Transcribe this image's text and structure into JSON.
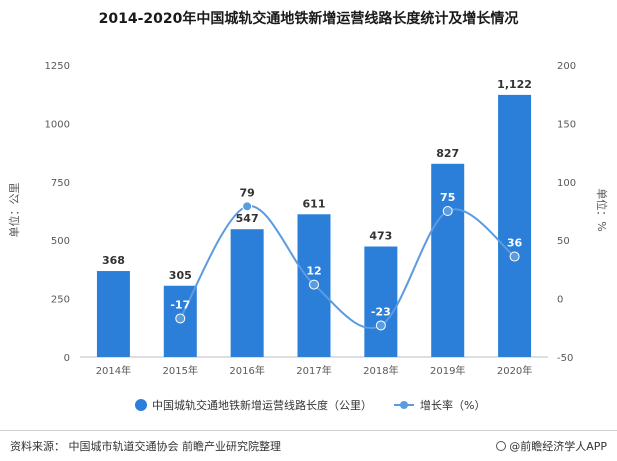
{
  "chart_data": {
    "type": "bar+line",
    "title": "2014-2020年中国城轨交通地铁新增运营线路长度统计及增长情况",
    "categories": [
      "2014年",
      "2015年",
      "2016年",
      "2017年",
      "2018年",
      "2019年",
      "2020年"
    ],
    "series": [
      {
        "name": "中国城轨交通地铁新增运营线路长度（公里）",
        "type": "bar",
        "axis": "left",
        "color": "#2b7fd8",
        "values": [
          368,
          305,
          547,
          611,
          473,
          827,
          1122
        ],
        "labels": [
          "368",
          "305",
          "547",
          "611",
          "473",
          "827",
          "1,122"
        ]
      },
      {
        "name": "增长率（%）",
        "type": "line",
        "axis": "right",
        "smooth": true,
        "color": "#5b9be0",
        "values": [
          null,
          -17,
          79,
          12,
          -23,
          75,
          36
        ],
        "labels": [
          "",
          "-17",
          "79",
          "12",
          "-23",
          "75",
          "36"
        ]
      }
    ],
    "ylabel_left": "单位：公里",
    "ylabel_right": "单位：%",
    "ylim_left": [
      0,
      1250
    ],
    "yticks_left": [
      "0",
      "250",
      "500",
      "750",
      "1000",
      "1250"
    ],
    "ylim_right": [
      -50,
      200
    ],
    "yticks_right": [
      "-50",
      "0",
      "50",
      "100",
      "150",
      "200"
    ],
    "legend_position": "bottom",
    "grid": false
  },
  "footer": {
    "source": "资料来源：  中国城市轨道交通协会 前瞻产业研究院整理",
    "brand": "@前瞻经济学人APP"
  }
}
